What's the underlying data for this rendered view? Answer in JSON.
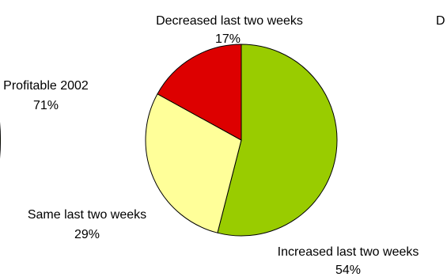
{
  "chart_data": [
    {
      "type": "pie",
      "title": "",
      "partial": true,
      "slices": [
        {
          "label": "Profitable 2002",
          "value": 71,
          "value_label": "71%",
          "color": "#99cc00"
        }
      ]
    },
    {
      "type": "pie",
      "title": "",
      "start": "12 o'clock, clockwise",
      "slices": [
        {
          "label": "Increased last two weeks",
          "value": 54,
          "value_label": "54%",
          "color": "#99cc00"
        },
        {
          "label": "Same last two weeks",
          "value": 29,
          "value_label": "29%",
          "color": "#ffff99"
        },
        {
          "label": "Decreased last two weeks",
          "value": 17,
          "value_label": "17%",
          "color": "#dd0000"
        }
      ]
    },
    {
      "type": "pie",
      "title": "",
      "partial": true,
      "slices": [
        {
          "label": "D",
          "color": "#000000"
        }
      ]
    }
  ]
}
